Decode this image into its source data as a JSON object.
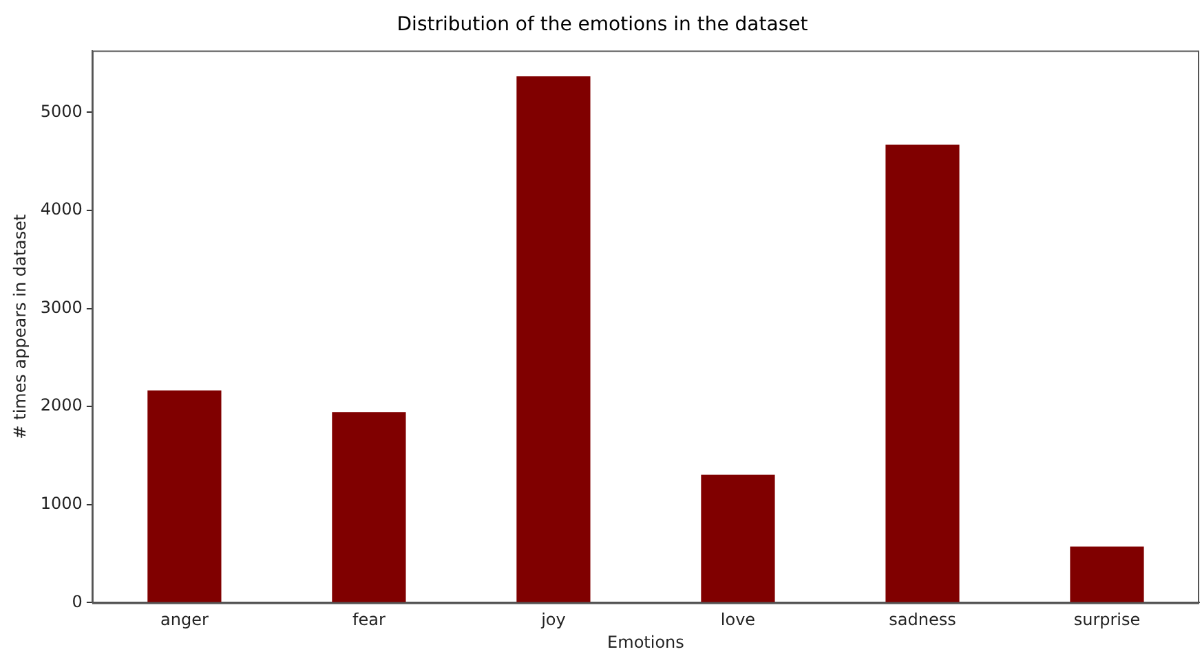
{
  "chart_data": {
    "type": "bar",
    "title": "Distribution of the emotions in the dataset",
    "xlabel": "Emotions",
    "ylabel": "# times appears in dataset",
    "categories": [
      "anger",
      "fear",
      "joy",
      "love",
      "sadness",
      "surprise"
    ],
    "values": [
      2165,
      1944,
      5367,
      1304,
      4670,
      573
    ],
    "color": "#800000",
    "ylim": [
      0,
      5630
    ],
    "yticks": [
      0,
      1000,
      2000,
      3000,
      4000,
      5000
    ],
    "grid": false,
    "legend": false
  }
}
